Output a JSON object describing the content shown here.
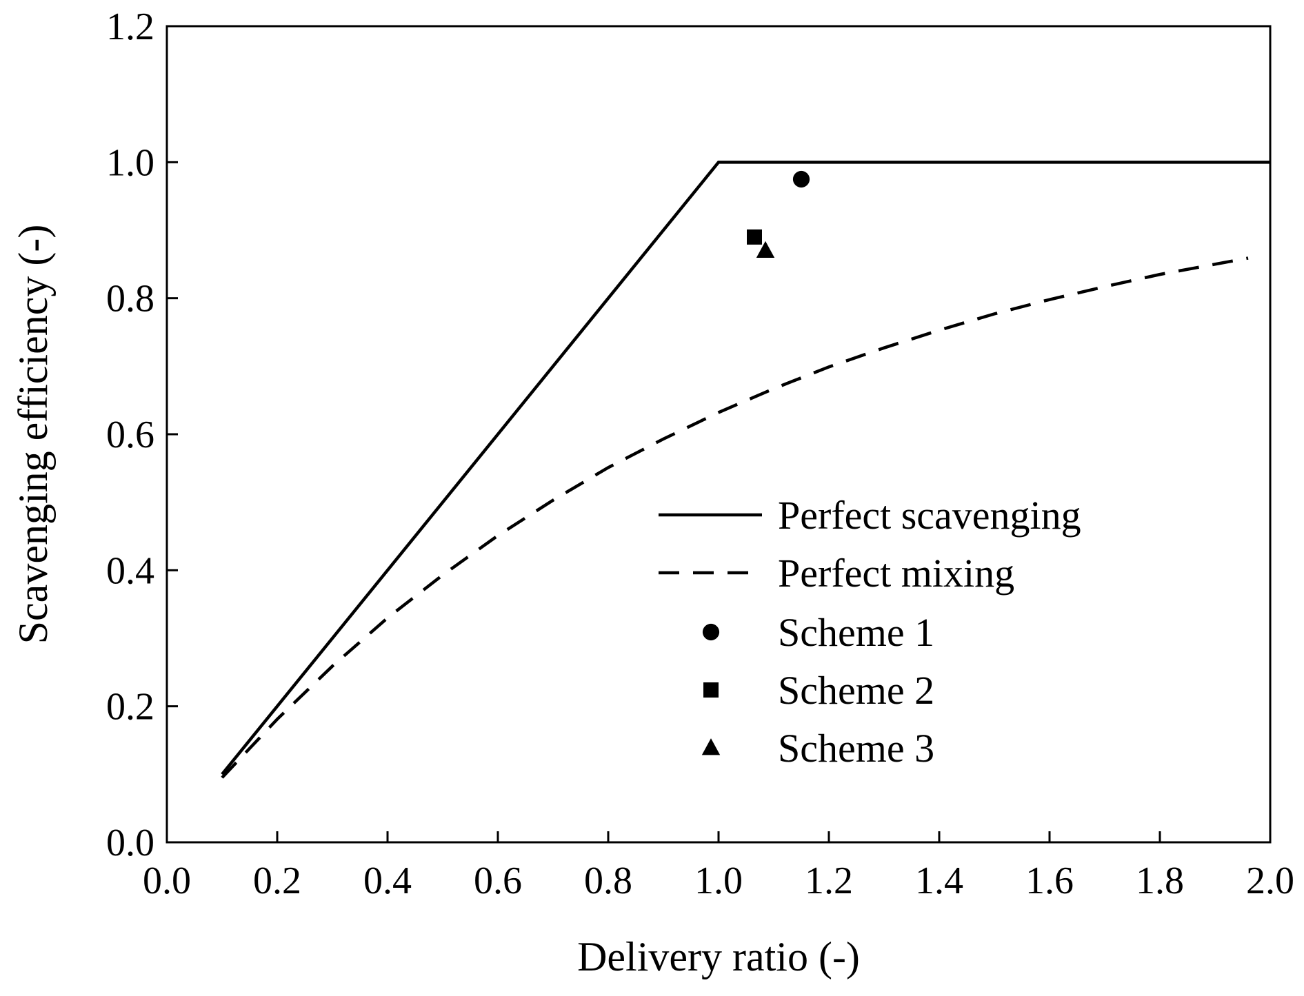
{
  "chart_data": {
    "type": "line",
    "title": "",
    "xlabel": "Delivery ratio (-)",
    "ylabel": "Scavenging efficiency (-)",
    "xlim": [
      0.0,
      2.0
    ],
    "ylim": [
      0.0,
      1.2
    ],
    "x_ticks": [
      "0.0",
      "0.2",
      "0.4",
      "0.6",
      "0.8",
      "1.0",
      "1.2",
      "1.4",
      "1.6",
      "1.8",
      "2.0"
    ],
    "y_ticks": [
      "0.0",
      "0.2",
      "0.4",
      "0.6",
      "0.8",
      "1.0",
      "1.2"
    ],
    "grid": false,
    "legend_position": "right-center",
    "series": [
      {
        "name": "Perfect scavenging",
        "kind": "line",
        "style": "solid",
        "color": "#000000",
        "x": [
          0.1,
          1.0,
          2.0
        ],
        "y": [
          0.1,
          1.0,
          1.0
        ]
      },
      {
        "name": "Perfect mixing",
        "kind": "line",
        "style": "dashed",
        "color": "#000000",
        "x": [
          0.1,
          0.2,
          0.3,
          0.4,
          0.5,
          0.6,
          0.7,
          0.8,
          0.9,
          1.0,
          1.1,
          1.2,
          1.3,
          1.4,
          1.5,
          1.6,
          1.7,
          1.8,
          1.9,
          1.96
        ],
        "y": [
          0.095,
          0.181,
          0.259,
          0.33,
          0.393,
          0.451,
          0.503,
          0.551,
          0.593,
          0.632,
          0.667,
          0.699,
          0.727,
          0.753,
          0.777,
          0.798,
          0.817,
          0.835,
          0.85,
          0.859
        ]
      },
      {
        "name": "Scheme 1",
        "kind": "scatter",
        "marker": "circle",
        "color": "#000000",
        "x": [
          1.15
        ],
        "y": [
          0.975
        ]
      },
      {
        "name": "Scheme 2",
        "kind": "scatter",
        "marker": "square",
        "color": "#000000",
        "x": [
          1.065
        ],
        "y": [
          0.89
        ]
      },
      {
        "name": "Scheme 3",
        "kind": "scatter",
        "marker": "triangle",
        "color": "#000000",
        "x": [
          1.085
        ],
        "y": [
          0.87
        ]
      }
    ]
  }
}
